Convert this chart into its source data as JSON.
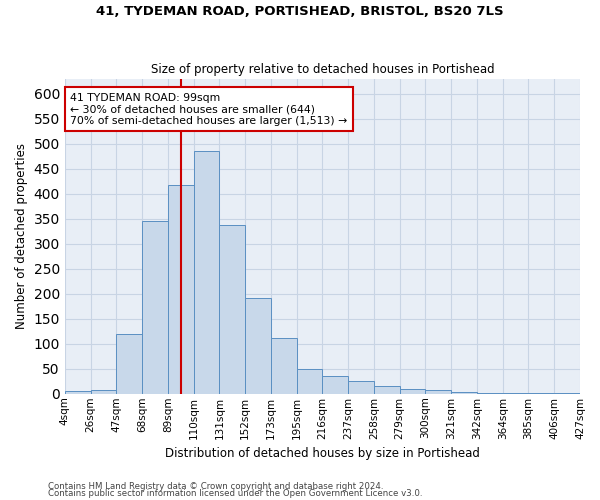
{
  "title1": "41, TYDEMAN ROAD, PORTISHEAD, BRISTOL, BS20 7LS",
  "title2": "Size of property relative to detached houses in Portishead",
  "xlabel": "Distribution of detached houses by size in Portishead",
  "ylabel": "Number of detached properties",
  "bar_values": [
    5,
    7,
    120,
    345,
    418,
    485,
    337,
    192,
    112,
    49,
    35,
    26,
    15,
    10,
    7,
    3,
    2,
    1,
    2,
    1
  ],
  "bin_labels": [
    "4sqm",
    "26sqm",
    "47sqm",
    "68sqm",
    "89sqm",
    "110sqm",
    "131sqm",
    "152sqm",
    "173sqm",
    "195sqm",
    "216sqm",
    "237sqm",
    "258sqm",
    "279sqm",
    "300sqm",
    "321sqm",
    "342sqm",
    "364sqm",
    "385sqm",
    "406sqm",
    "427sqm"
  ],
  "bar_color": "#c8d8ea",
  "bar_edge_color": "#5a8fc2",
  "grid_color": "#c8d4e4",
  "background_color": "#e8eef6",
  "vline_color": "#cc0000",
  "annotation_text": "41 TYDEMAN ROAD: 99sqm\n← 30% of detached houses are smaller (644)\n70% of semi-detached houses are larger (1,513) →",
  "annotation_box_color": "#ffffff",
  "annotation_box_edge": "#cc0000",
  "footer1": "Contains HM Land Registry data © Crown copyright and database right 2024.",
  "footer2": "Contains public sector information licensed under the Open Government Licence v3.0.",
  "ylim": [
    0,
    630
  ],
  "yticks": [
    0,
    50,
    100,
    150,
    200,
    250,
    300,
    350,
    400,
    450,
    500,
    550,
    600
  ]
}
